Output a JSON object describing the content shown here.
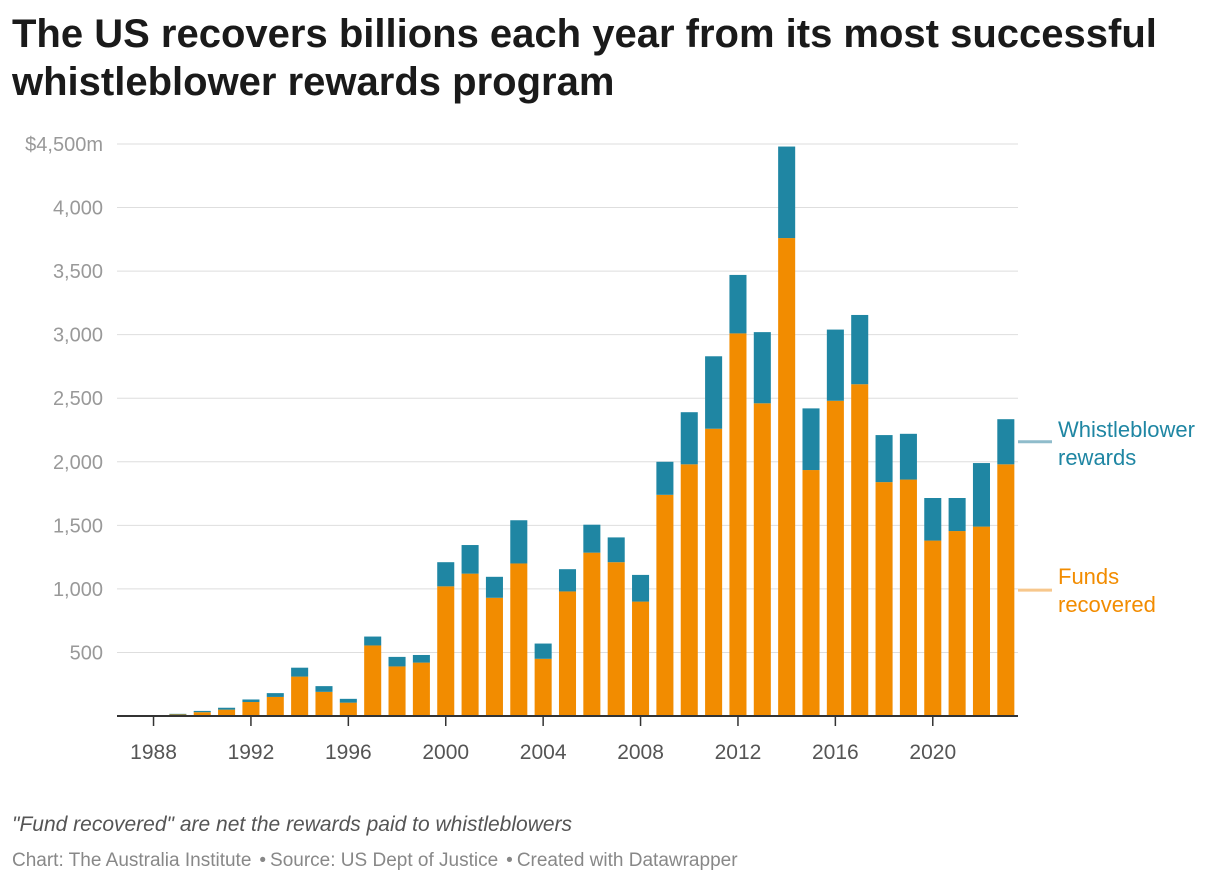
{
  "chart_data": {
    "type": "bar",
    "stacked": true,
    "title": "The US recovers billions each year from its most successful whistleblower rewards program",
    "ylim": [
      0,
      4500
    ],
    "y_ticks": [
      500,
      1000,
      1500,
      2000,
      2500,
      3000,
      3500,
      4000,
      4500
    ],
    "y_tick_labels": [
      "500",
      "1,000",
      "1,500",
      "2,000",
      "2,500",
      "3,000",
      "3,500",
      "4,000",
      "$4,500m"
    ],
    "x_tick_labels": [
      "1988",
      "1992",
      "1996",
      "2000",
      "2004",
      "2008",
      "2012",
      "2016",
      "2020"
    ],
    "categories": [
      "1987",
      "1988",
      "1989",
      "1990",
      "1991",
      "1992",
      "1993",
      "1994",
      "1995",
      "1996",
      "1997",
      "1998",
      "1999",
      "2000",
      "2001",
      "2002",
      "2003",
      "2004",
      "2005",
      "2006",
      "2007",
      "2008",
      "2009",
      "2010",
      "2011",
      "2012",
      "2013",
      "2014",
      "2015",
      "2016",
      "2017",
      "2018",
      "2019",
      "2020",
      "2021",
      "2022",
      "2023"
    ],
    "series": [
      {
        "name": "Funds recovered",
        "color": "#f28c00",
        "values": [
          0,
          2,
          12,
          30,
          50,
          110,
          150,
          310,
          190,
          105,
          555,
          390,
          420,
          1020,
          1120,
          930,
          1200,
          450,
          980,
          1285,
          1210,
          900,
          1740,
          1980,
          2260,
          3010,
          2460,
          3760,
          1935,
          2480,
          2610,
          1840,
          1860,
          1380,
          1455,
          1490,
          1980
        ]
      },
      {
        "name": "Whistleblower rewards",
        "color": "#1f86a3",
        "values": [
          0,
          1,
          5,
          10,
          15,
          20,
          30,
          70,
          45,
          30,
          70,
          75,
          60,
          190,
          225,
          165,
          340,
          120,
          175,
          220,
          195,
          210,
          260,
          410,
          570,
          460,
          560,
          720,
          485,
          560,
          545,
          370,
          360,
          335,
          260,
          500,
          355
        ]
      }
    ],
    "legend_placement": "right",
    "grid": true,
    "note": "\"Fund recovered\" are net the rewards paid to whistleblowers",
    "credit": "Chart: The Australia Institute",
    "source": "Source: US Dept of Justice",
    "created_with": "Created with Datawrapper"
  }
}
